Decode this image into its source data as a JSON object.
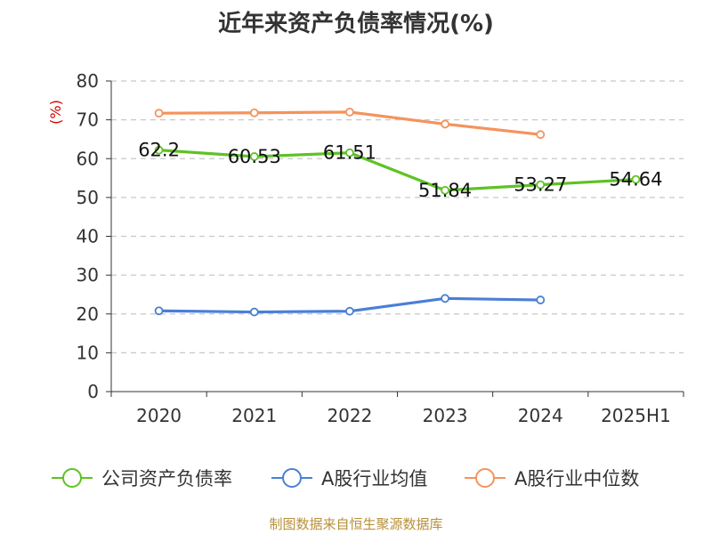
{
  "chart_data": {
    "type": "line",
    "title": "近年来资产负债率情况(%)",
    "ylabel": "(%)",
    "ylim": [
      0,
      80
    ],
    "yticks": [
      0,
      10,
      20,
      30,
      40,
      50,
      60,
      70,
      80
    ],
    "categories": [
      "2020",
      "2021",
      "2022",
      "2023",
      "2024",
      "2025H1"
    ],
    "grid": true,
    "legend_position": "bottom",
    "series": [
      {
        "name": "公司资产负债率",
        "color": "#5ec225",
        "values": [
          62.2,
          60.53,
          61.51,
          51.84,
          53.27,
          54.64
        ],
        "data_labels": [
          "62.2",
          "60.53",
          "61.51",
          "51.84",
          "53.27",
          "54.64"
        ]
      },
      {
        "name": "A股行业均值",
        "color": "#4a7fd6",
        "values": [
          20.8,
          20.5,
          20.7,
          24.0,
          23.6,
          null
        ]
      },
      {
        "name": "A股行业中位数",
        "color": "#f5935c",
        "values": [
          71.7,
          71.8,
          72.0,
          68.9,
          66.2,
          null
        ]
      }
    ]
  },
  "footer": {
    "source": "制图数据来自恒生聚源数据库"
  }
}
